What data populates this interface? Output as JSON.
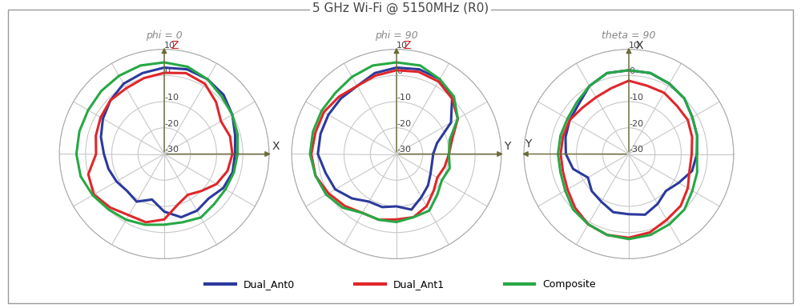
{
  "title": "5 GHz Wi-Fi @ 5150MHz (R0)",
  "legend": "lower center",
  "chart_data": [
    {
      "type": "polar",
      "title": "phi = 0",
      "xlim": [
        0,
        360
      ],
      "xticks": [
        0,
        30,
        60,
        90,
        120,
        150,
        180,
        210,
        240,
        270,
        300,
        330
      ],
      "ylim": [
        -30,
        10
      ],
      "yticks": [
        -30,
        -20,
        -10,
        0,
        10
      ],
      "grid": true,
      "tick_labels": "y",
      "annotations": [
        {
          "text": "Z",
          "direction": 90
        },
        {
          "text": "X",
          "direction": 0
        }
      ],
      "x": [
        0,
        15,
        30,
        45,
        60,
        75,
        90,
        105,
        120,
        135,
        150,
        165,
        180,
        195,
        210,
        225,
        240,
        255,
        270,
        285,
        300,
        315,
        330,
        345
      ],
      "series": [
        {
          "name": "Dual_Ant0",
          "color": "#2b3a9c",
          "values": [
            -3,
            -2,
            0,
            2,
            3,
            3.5,
            3,
            2,
            1,
            -1,
            -3,
            -5,
            -7,
            -8,
            -9,
            -10,
            -9,
            -12,
            -8,
            -5,
            -5,
            -6,
            -4,
            -3
          ]
        },
        {
          "name": "Dual_Ant1",
          "color": "#e0262a",
          "values": [
            -4,
            -4,
            -5,
            -2,
            1,
            2,
            1,
            0,
            -1,
            -1,
            -2,
            -3,
            -4,
            0,
            1,
            -1,
            -3,
            -3,
            -5,
            -10,
            -12,
            -10,
            -7,
            -5
          ]
        },
        {
          "name": "Composite",
          "color": "#27a845",
          "values": [
            -2,
            -1,
            0,
            1,
            3,
            4.5,
            5,
            5,
            4.5,
            4,
            3.5,
            3.5,
            3.5,
            3,
            1.5,
            0,
            -1,
            -2,
            -3,
            -3,
            -2,
            -3,
            -3,
            -2.5
          ]
        }
      ]
    },
    {
      "type": "polar",
      "title": "phi = 90",
      "xlim": [
        0,
        360
      ],
      "xticks": [
        0,
        30,
        60,
        90,
        120,
        150,
        180,
        210,
        240,
        270,
        300,
        330
      ],
      "ylim": [
        -30,
        10
      ],
      "yticks": [
        -30,
        -20,
        -10,
        0,
        10
      ],
      "grid": true,
      "tick_labels": "y",
      "annotations": [
        {
          "text": "Z",
          "direction": 90
        },
        {
          "text": "Y",
          "direction": 0
        }
      ],
      "x": [
        0,
        15,
        30,
        45,
        60,
        75,
        90,
        105,
        120,
        135,
        150,
        165,
        180,
        195,
        210,
        225,
        240,
        255,
        270,
        285,
        300,
        315,
        330,
        345
      ],
      "series": [
        {
          "name": "Dual_Ant0",
          "color": "#2b3a9c",
          "values": [
            -16,
            -14,
            -6,
            0,
            3,
            3.5,
            3,
            2,
            0,
            0,
            0,
            0,
            0,
            -2,
            -3,
            -6,
            -9,
            -9,
            -10,
            -8,
            -11,
            -13,
            -15,
            -16
          ]
        },
        {
          "name": "Dual_Ant1",
          "color": "#e0262a",
          "values": [
            -10,
            -8,
            -3,
            0,
            2,
            2.5,
            2,
            1,
            0,
            1,
            2,
            2,
            2.5,
            2,
            0,
            -2,
            -4,
            -4,
            -5,
            -5,
            -7,
            -10,
            -12,
            -11
          ]
        },
        {
          "name": "Composite",
          "color": "#27a845",
          "values": [
            -10,
            -9,
            -3,
            1,
            3,
            5,
            5,
            5,
            4,
            3,
            3,
            3,
            3,
            2,
            1,
            -1,
            -4,
            -4,
            -4,
            -5,
            -5,
            -8,
            -10,
            -9
          ]
        }
      ]
    },
    {
      "type": "polar",
      "title": "theta = 90",
      "xlim": [
        0,
        360
      ],
      "xticks": [
        0,
        30,
        60,
        90,
        120,
        150,
        180,
        210,
        240,
        270,
        300,
        330
      ],
      "ylim": [
        -30,
        10
      ],
      "yticks": [
        -30,
        -20,
        -10,
        0,
        10
      ],
      "grid": true,
      "tick_labels": "y",
      "annotations": [
        {
          "text": "X",
          "direction": 90
        },
        {
          "text": "Y",
          "direction": 180
        }
      ],
      "x": [
        0,
        15,
        30,
        45,
        60,
        75,
        90,
        105,
        120,
        135,
        150,
        165,
        180,
        195,
        210,
        225,
        240,
        255,
        270,
        285,
        300,
        315,
        330,
        345
      ],
      "series": [
        {
          "name": "Dual_Ant0",
          "color": "#2b3a9c",
          "values": [
            -4,
            -3,
            -2,
            0,
            1,
            2,
            2,
            2,
            0,
            -3,
            -4,
            -5,
            -6,
            -8,
            -12,
            -10,
            -9,
            -7,
            -7,
            -6,
            -8,
            -10,
            -8,
            -5
          ]
        },
        {
          "name": "Dual_Ant1",
          "color": "#e0262a",
          "values": [
            -6,
            -5,
            -4,
            -4,
            -3,
            -3,
            -2,
            -4,
            -5,
            -5,
            -4,
            -4,
            -4,
            -4,
            -3,
            -1,
            1,
            2,
            2,
            1,
            -1,
            -2,
            -4,
            -6
          ]
        },
        {
          "name": "Composite",
          "color": "#27a845",
          "values": [
            -4,
            -3,
            -2,
            0,
            1,
            2,
            2,
            2,
            0,
            -2,
            -3,
            -3,
            -3,
            -3,
            -2,
            0,
            1,
            2,
            2.5,
            2,
            1,
            0,
            -2,
            -3
          ]
        }
      ]
    }
  ]
}
